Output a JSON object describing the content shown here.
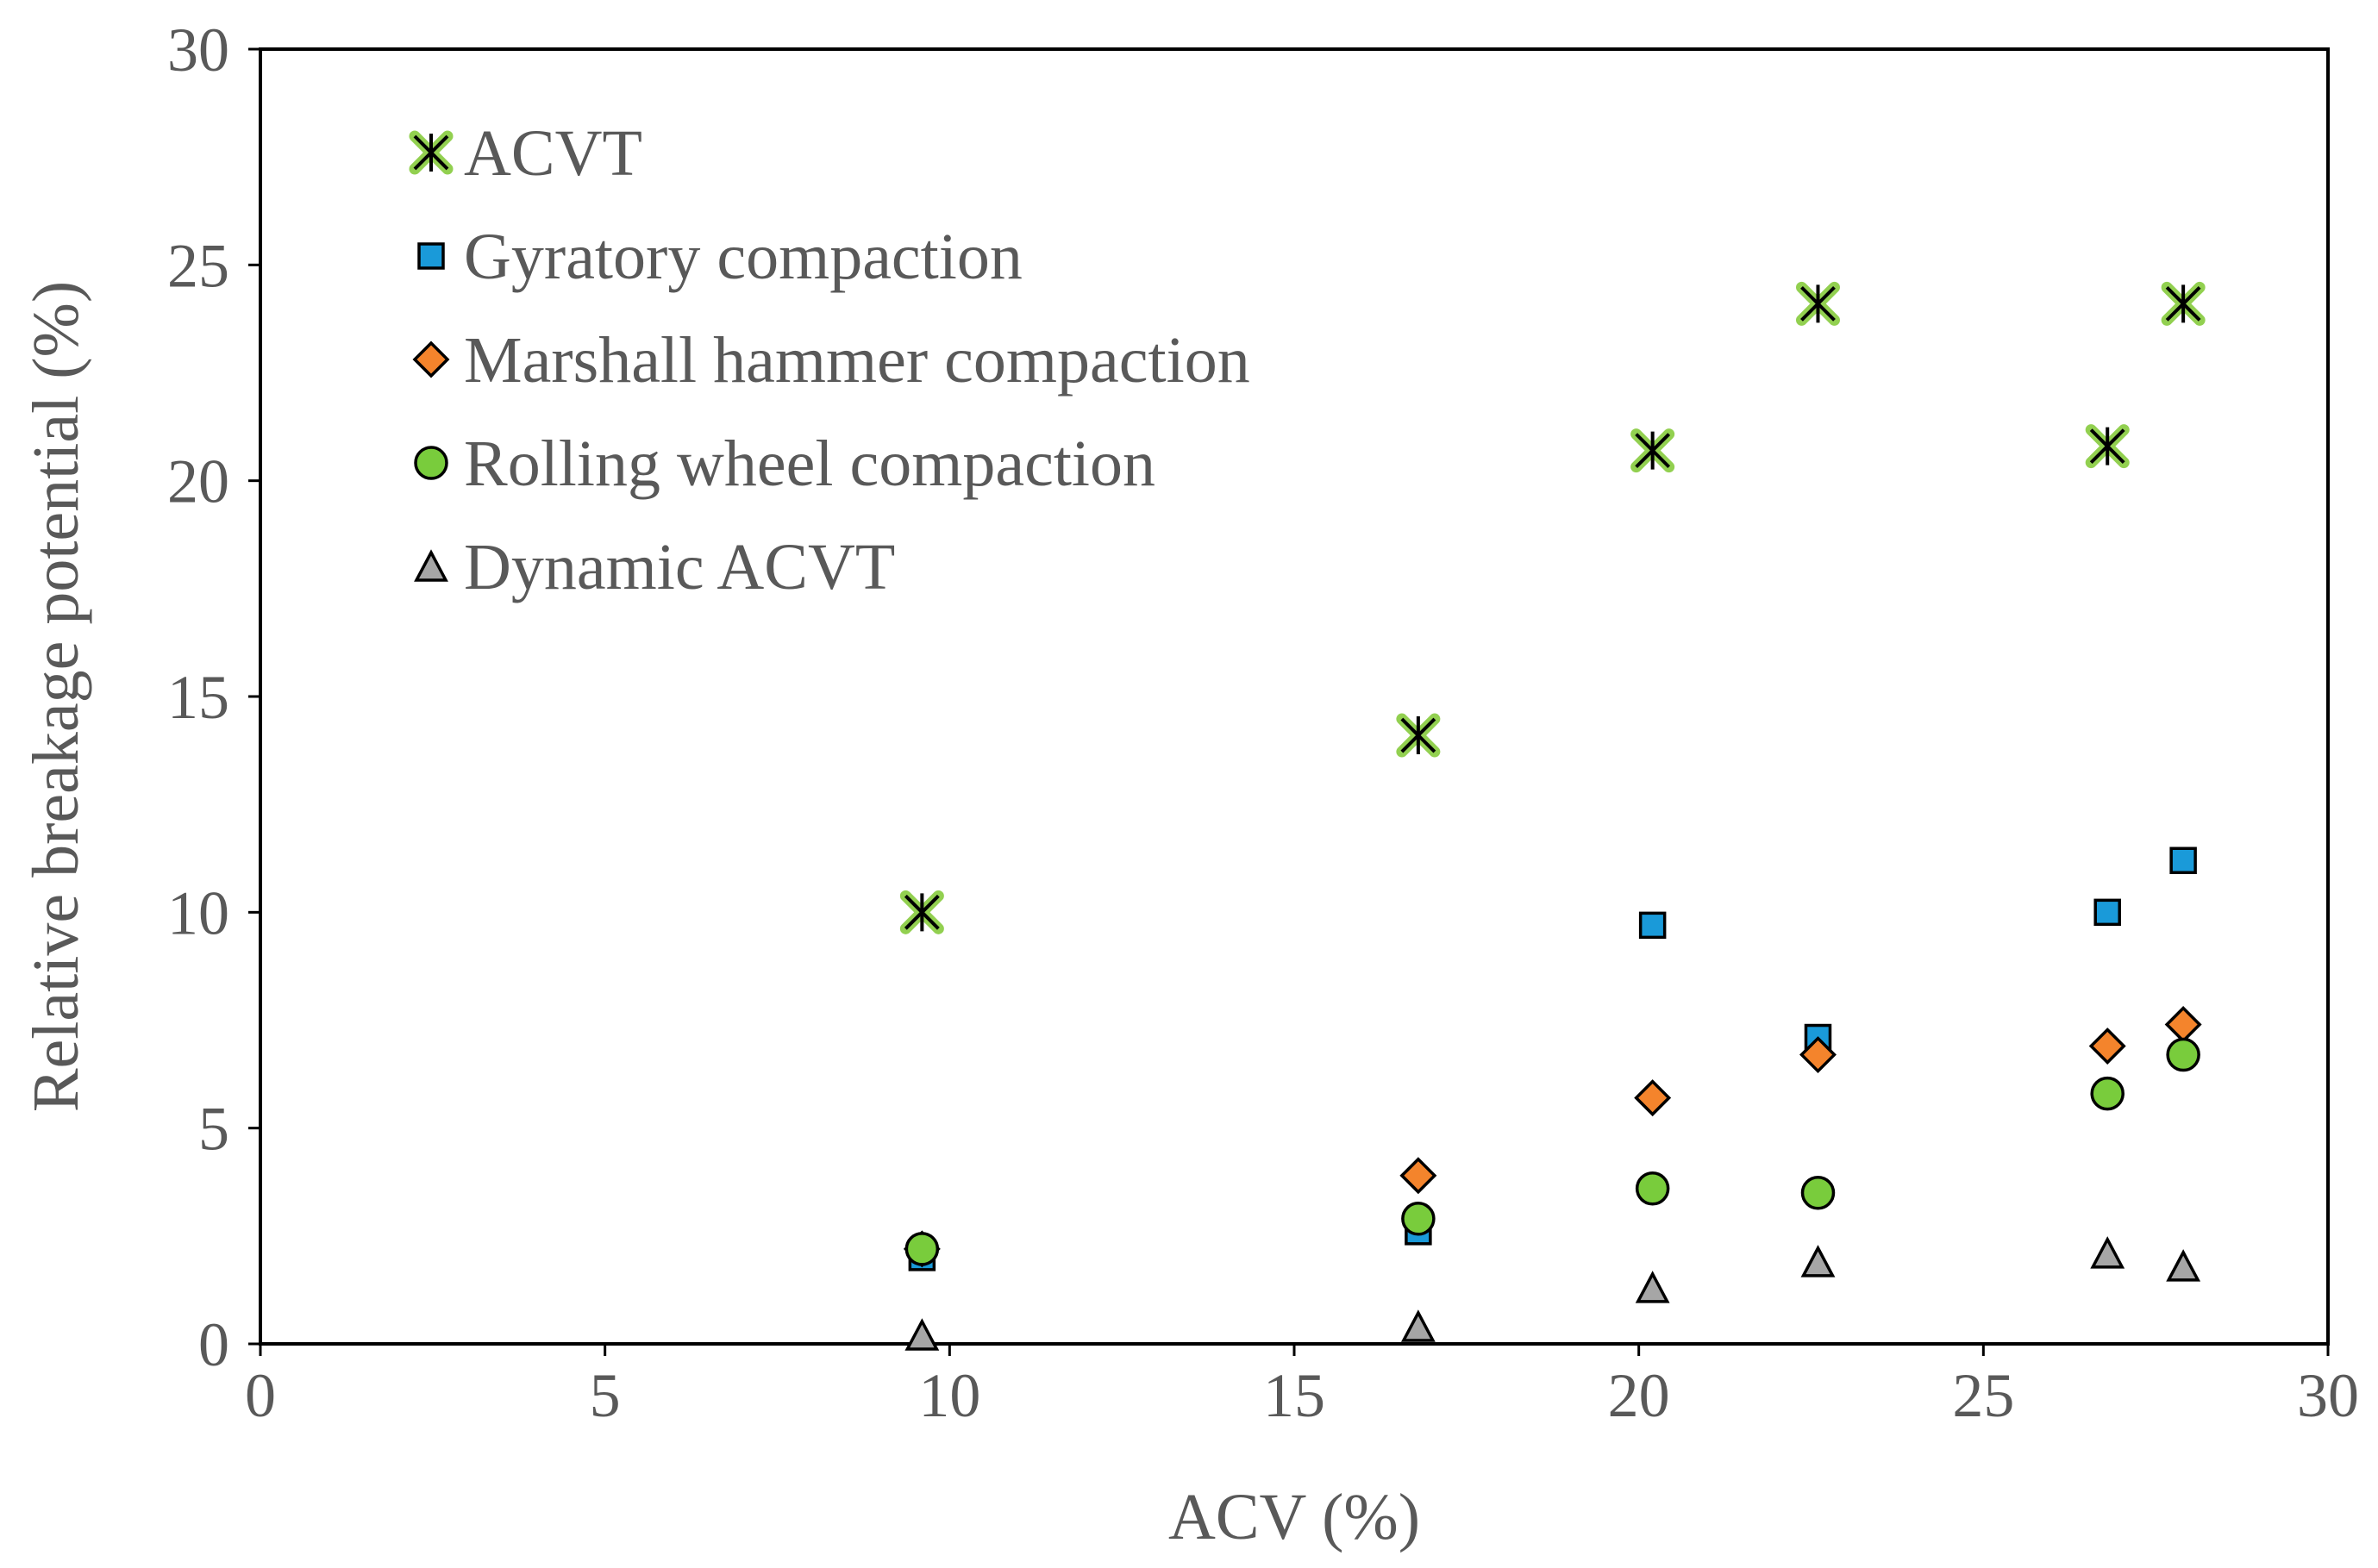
{
  "chart_data": {
    "type": "scatter",
    "title": "",
    "xlabel": "ACV (%)",
    "ylabel": "Relative breakage potential (%)",
    "xlim": [
      0,
      30
    ],
    "ylim": [
      0,
      30
    ],
    "xticks": [
      0,
      5,
      10,
      15,
      20,
      25,
      30
    ],
    "yticks": [
      0,
      5,
      10,
      15,
      20,
      25,
      30
    ],
    "grid": false,
    "legend_position": "top-left",
    "x": [
      9.6,
      16.8,
      20.2,
      22.6,
      26.8,
      27.9
    ],
    "series": [
      {
        "name": "ACVT",
        "marker": "asterisk",
        "color": "#92d050",
        "values": [
          10.0,
          14.1,
          20.7,
          24.1,
          20.8,
          24.1
        ]
      },
      {
        "name": "Gyratory compaction",
        "marker": "square",
        "color": "#1a9ad9",
        "values": [
          2.0,
          2.6,
          9.7,
          7.1,
          10.0,
          11.2
        ]
      },
      {
        "name": "Marshall hammer compaction",
        "marker": "diamond",
        "color": "#f4842c",
        "values": [
          2.2,
          3.9,
          5.7,
          6.7,
          6.9,
          7.4
        ]
      },
      {
        "name": "Rolling wheel compaction",
        "marker": "circle",
        "color": "#79cc3c",
        "values": [
          2.2,
          2.9,
          3.6,
          3.5,
          5.8,
          6.7
        ]
      },
      {
        "name": "Dynamic ACVT",
        "marker": "triangle",
        "color": "#a6a6a6",
        "values": [
          0.2,
          0.4,
          1.3,
          1.9,
          2.1,
          1.8
        ]
      }
    ]
  }
}
